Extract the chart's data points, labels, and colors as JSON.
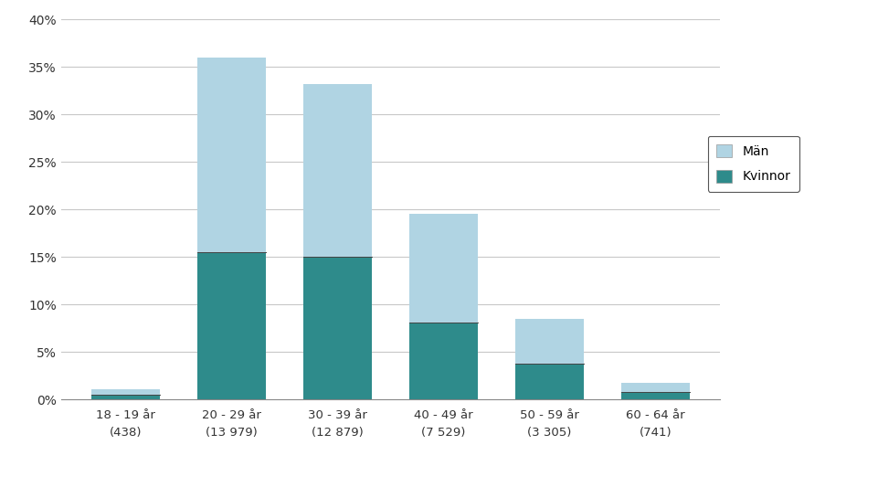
{
  "categories": [
    "18 - 19 år\n(438)",
    "20 - 29 år\n(13 979)",
    "30 - 39 år\n(12 879)",
    "40 - 49 år\n(7 529)",
    "50 - 59 år\n(3 305)",
    "60 - 64 år\n(741)"
  ],
  "kvinnor": [
    0.5,
    15.5,
    15.0,
    8.1,
    3.8,
    0.8
  ],
  "man": [
    0.6,
    20.5,
    18.2,
    11.4,
    4.7,
    0.9
  ],
  "color_kvinnor": "#2e8b8b",
  "color_man": "#b0d4e3",
  "ylim": [
    0,
    40
  ],
  "yticks": [
    0,
    5,
    10,
    15,
    20,
    25,
    30,
    35,
    40
  ],
  "legend_man": "Män",
  "legend_kvinnor": "Kvinnor",
  "background_color": "#ffffff",
  "grid_color": "#c8c8c8"
}
